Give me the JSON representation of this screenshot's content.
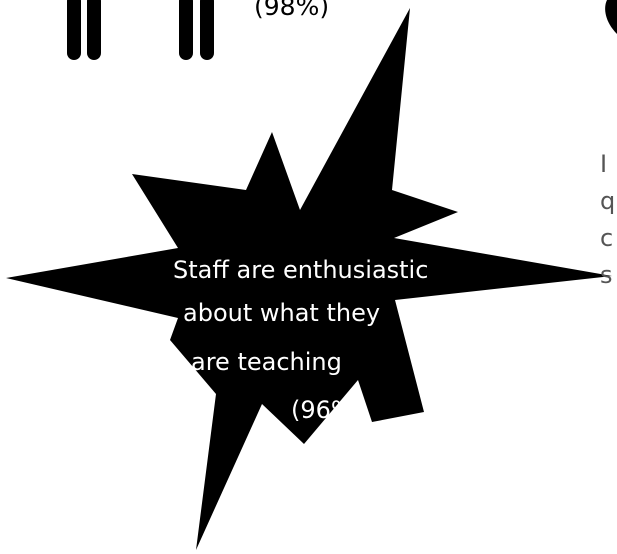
{
  "top_item": {
    "percent_label": "(98%)",
    "icon": "people-legs-icon"
  },
  "star": {
    "icon": "starburst-shape",
    "fill_color": "#000000",
    "text_color": "#ffffff",
    "lines": [
      "Staff are enthusiastic",
      "about what they",
      "are teaching",
      "(96%)"
    ]
  },
  "right_item": {
    "icon": "partial-circle-icon",
    "text_color": "#555555",
    "partial_letters": [
      "I",
      "q",
      "c",
      "s"
    ]
  }
}
